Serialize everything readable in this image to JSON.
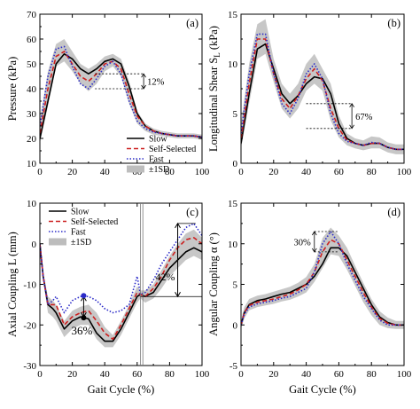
{
  "colors": {
    "slow": "#000000",
    "self_selected": "#cc1f1f",
    "fast": "#2a2ac8",
    "sd_band": "#bdbdbd"
  },
  "chart_data": [
    {
      "type": "line",
      "panel": "(a)",
      "xlabel": "",
      "ylabel": "Pressure (kPa)",
      "xlim": [
        0,
        100
      ],
      "ylim": [
        10,
        70
      ],
      "xticks": [
        0,
        20,
        40,
        60,
        80,
        100
      ],
      "yticks": [
        10,
        20,
        30,
        40,
        50,
        60,
        70
      ],
      "x": [
        0,
        5,
        10,
        15,
        20,
        25,
        30,
        35,
        40,
        45,
        50,
        55,
        60,
        65,
        70,
        75,
        80,
        85,
        90,
        95,
        100
      ],
      "series": [
        {
          "name": "Slow",
          "style": "solid",
          "values": [
            20,
            35,
            50,
            54,
            52,
            48,
            46,
            48,
            51,
            52,
            50,
            41,
            30,
            25,
            23,
            22,
            21.5,
            21,
            21,
            21,
            20.5
          ]
        },
        {
          "name": "Self-Selected",
          "style": "dashed",
          "values": [
            22,
            40,
            53,
            55,
            50,
            45,
            43,
            46,
            50,
            51,
            48,
            38,
            29,
            25,
            23,
            22,
            21.5,
            21,
            21,
            21,
            20.5
          ]
        },
        {
          "name": "Fast",
          "style": "dotted",
          "values": [
            25,
            45,
            56,
            57,
            49,
            42,
            40,
            44,
            49,
            51,
            46,
            35,
            27,
            24,
            22.5,
            22,
            21.5,
            21,
            21,
            21,
            20.5
          ]
        }
      ],
      "sd_band": {
        "name": "±1SD",
        "lower": [
          18,
          33,
          49,
          51,
          47,
          42,
          39,
          42,
          47,
          49,
          45,
          34,
          26,
          23,
          21.5,
          21,
          20.5,
          20,
          20,
          20,
          19.5
        ],
        "upper": [
          27,
          47,
          58,
          60,
          55,
          50,
          48,
          50,
          53,
          54,
          52,
          43,
          31,
          26,
          24,
          23,
          22.5,
          22,
          22,
          22,
          21.5
        ]
      },
      "annotations": [
        {
          "text": "12%",
          "x": 60,
          "y_from": 40,
          "y_to": 46
        }
      ],
      "legend": "middle-right"
    },
    {
      "type": "line",
      "panel": "(b)",
      "xlabel": "",
      "ylabel": "Longitudinal Shear S_L (kPa)",
      "ylabel_main": "Longitudinal Shear S",
      "ylabel_sub": "L",
      "ylabel_unit": " (kPa)",
      "xlim": [
        0,
        100
      ],
      "ylim": [
        0,
        15
      ],
      "xticks": [
        0,
        20,
        40,
        60,
        80,
        100
      ],
      "yticks": [
        0,
        5,
        10,
        15
      ],
      "x": [
        0,
        5,
        10,
        15,
        20,
        25,
        30,
        35,
        40,
        45,
        50,
        55,
        60,
        65,
        70,
        75,
        80,
        85,
        90,
        95,
        100
      ],
      "series": [
        {
          "name": "Slow",
          "style": "solid",
          "values": [
            2,
            7,
            11.5,
            12,
            9.5,
            7,
            6,
            6.8,
            8,
            8.7,
            8.5,
            7,
            4,
            2.5,
            2,
            1.8,
            2,
            2,
            1.6,
            1.4,
            1.4
          ]
        },
        {
          "name": "Self-Selected",
          "style": "dashed",
          "values": [
            2.5,
            8,
            12.5,
            12.5,
            9,
            6.5,
            5.5,
            6.8,
            8.5,
            9.5,
            8.3,
            5.5,
            3.5,
            2.3,
            2,
            1.8,
            2,
            2,
            1.6,
            1.4,
            1.4
          ]
        },
        {
          "name": "Fast",
          "style": "dotted",
          "values": [
            3,
            9,
            13,
            13,
            9,
            6,
            5,
            6.5,
            9,
            10,
            8.5,
            5,
            3,
            2.2,
            2,
            1.8,
            2.1,
            2,
            1.6,
            1.4,
            1.4
          ]
        }
      ],
      "sd_band": {
        "name": "±1SD",
        "lower": [
          1.5,
          6,
          10.5,
          11,
          8.2,
          5.5,
          4.5,
          5.5,
          7.3,
          8,
          7.3,
          4.3,
          2.6,
          1.8,
          1.5,
          1.3,
          1.5,
          1.5,
          1.1,
          0.9,
          0.9
        ],
        "upper": [
          4,
          10,
          14,
          14.5,
          10.5,
          8,
          7,
          8,
          10,
          11,
          9.5,
          8,
          4.8,
          3,
          2.5,
          2.3,
          2.7,
          2.6,
          2.1,
          1.9,
          1.9
        ]
      },
      "annotations": [
        {
          "text": "67%",
          "x": 58,
          "y_from": 3.5,
          "y_to": 6
        }
      ],
      "legend": "none"
    },
    {
      "type": "line",
      "panel": "(c)",
      "xlabel": "Gait Cycle (%)",
      "ylabel": "Axial Coupling L (mm)",
      "xlim": [
        0,
        100
      ],
      "ylim": [
        -30,
        10
      ],
      "xticks": [
        0,
        20,
        40,
        60,
        80,
        100
      ],
      "yticks": [
        -30,
        -20,
        -10,
        0,
        10
      ],
      "x": [
        0,
        2,
        5,
        8,
        10,
        15,
        20,
        25,
        30,
        35,
        40,
        45,
        50,
        55,
        60,
        62,
        65,
        70,
        75,
        80,
        85,
        90,
        95,
        100
      ],
      "series": [
        {
          "name": "Slow",
          "style": "solid",
          "values": [
            0,
            -8,
            -15,
            -16,
            -17,
            -21,
            -19,
            -18,
            -18.5,
            -22,
            -24,
            -24,
            -21,
            -17,
            -13,
            -12.5,
            -13,
            -12,
            -9,
            -6,
            -4,
            -2,
            -1,
            -2
          ]
        },
        {
          "name": "Self-Selected",
          "style": "dashed",
          "values": [
            0,
            -8,
            -15,
            -15,
            -15,
            -20,
            -18,
            -17,
            -16.5,
            -19,
            -22,
            -23.5,
            -20,
            -16,
            -12,
            -12.5,
            -13,
            -11,
            -8,
            -4,
            -1,
            1,
            1.5,
            0
          ]
        },
        {
          "name": "Fast",
          "style": "dotted",
          "values": [
            0,
            -8,
            -15,
            -14,
            -13,
            -17,
            -14,
            -13,
            -13,
            -14,
            -16,
            -17,
            -16.5,
            -15,
            -8,
            -12.5,
            -12,
            -9,
            -5,
            -2,
            1,
            4,
            5,
            2
          ]
        }
      ],
      "sd_band": {
        "name": "±1SD",
        "lower": [
          -1,
          -9,
          -17,
          -18,
          -19,
          -23,
          -21,
          -20,
          -20,
          -23.5,
          -25.5,
          -25.5,
          -22.5,
          -18.5,
          -14.5,
          -13.5,
          -14.5,
          -13.5,
          -11,
          -8,
          -6,
          -4,
          -3,
          -4
        ],
        "upper": [
          1,
          -7,
          -13,
          -14,
          -15,
          -19,
          -16.5,
          -15.5,
          -15,
          -17,
          -20.5,
          -22.5,
          -19,
          -15,
          -10.5,
          -11.5,
          -11.5,
          -10,
          -6.5,
          -3,
          0,
          2.5,
          3.5,
          1.5
        ]
      },
      "annotations": [
        {
          "text": "36%",
          "x": 27,
          "y_from": -18,
          "y_to": -13
        },
        {
          "text": "42%",
          "x": 85,
          "y_from": -13,
          "y_to": 5
        }
      ],
      "legend": "top-left"
    },
    {
      "type": "line",
      "panel": "(d)",
      "xlabel": "Gait Cycle (%)",
      "ylabel": "Angular Coupling α (°)",
      "xlim": [
        0,
        100
      ],
      "ylim": [
        -5,
        15
      ],
      "xticks": [
        0,
        20,
        40,
        60,
        80,
        100
      ],
      "yticks": [
        -5,
        0,
        5,
        10,
        15
      ],
      "x": [
        0,
        2,
        5,
        10,
        15,
        20,
        25,
        30,
        35,
        40,
        45,
        50,
        55,
        60,
        65,
        70,
        75,
        80,
        85,
        90,
        95,
        100
      ],
      "series": [
        {
          "name": "Slow",
          "style": "solid",
          "values": [
            0,
            1.5,
            2.5,
            3,
            3.2,
            3.5,
            3.8,
            4,
            4.5,
            5,
            6,
            7.5,
            9.5,
            9.5,
            8.5,
            6.5,
            4.5,
            2.5,
            1,
            0.3,
            0,
            0
          ]
        },
        {
          "name": "Self-Selected",
          "style": "dashed",
          "values": [
            0,
            1.5,
            2.4,
            2.8,
            3,
            3.2,
            3.5,
            3.8,
            4.3,
            5,
            6.5,
            9,
            10.5,
            10,
            8,
            6,
            4,
            2.2,
            0.8,
            0.2,
            0,
            0
          ]
        },
        {
          "name": "Fast",
          "style": "dotted",
          "values": [
            0,
            1.3,
            2.2,
            2.6,
            2.8,
            3,
            3.3,
            3.5,
            4,
            4.5,
            6.5,
            10,
            11.5,
            10,
            7.5,
            5.5,
            3.5,
            2,
            0.6,
            0,
            0,
            0
          ]
        }
      ],
      "sd_band": {
        "name": "±1SD",
        "lower": [
          -0.5,
          0.8,
          1.8,
          2.2,
          2.4,
          2.6,
          2.9,
          3.1,
          3.5,
          4,
          5.3,
          7,
          8.7,
          8.5,
          6.8,
          4.8,
          2.8,
          1.2,
          0,
          -0.4,
          -0.5,
          -0.5
        ],
        "upper": [
          0.5,
          2.2,
          3.2,
          3.6,
          3.8,
          4.1,
          4.4,
          4.7,
          5.2,
          5.9,
          7.5,
          10.7,
          12,
          11,
          9.5,
          7.3,
          5.2,
          3.2,
          1.7,
          0.9,
          0.5,
          0.5
        ]
      },
      "annotations": [
        {
          "text": "30%",
          "x": 52,
          "y_from": 9,
          "y_to": 11.5
        }
      ],
      "legend": "none"
    }
  ]
}
